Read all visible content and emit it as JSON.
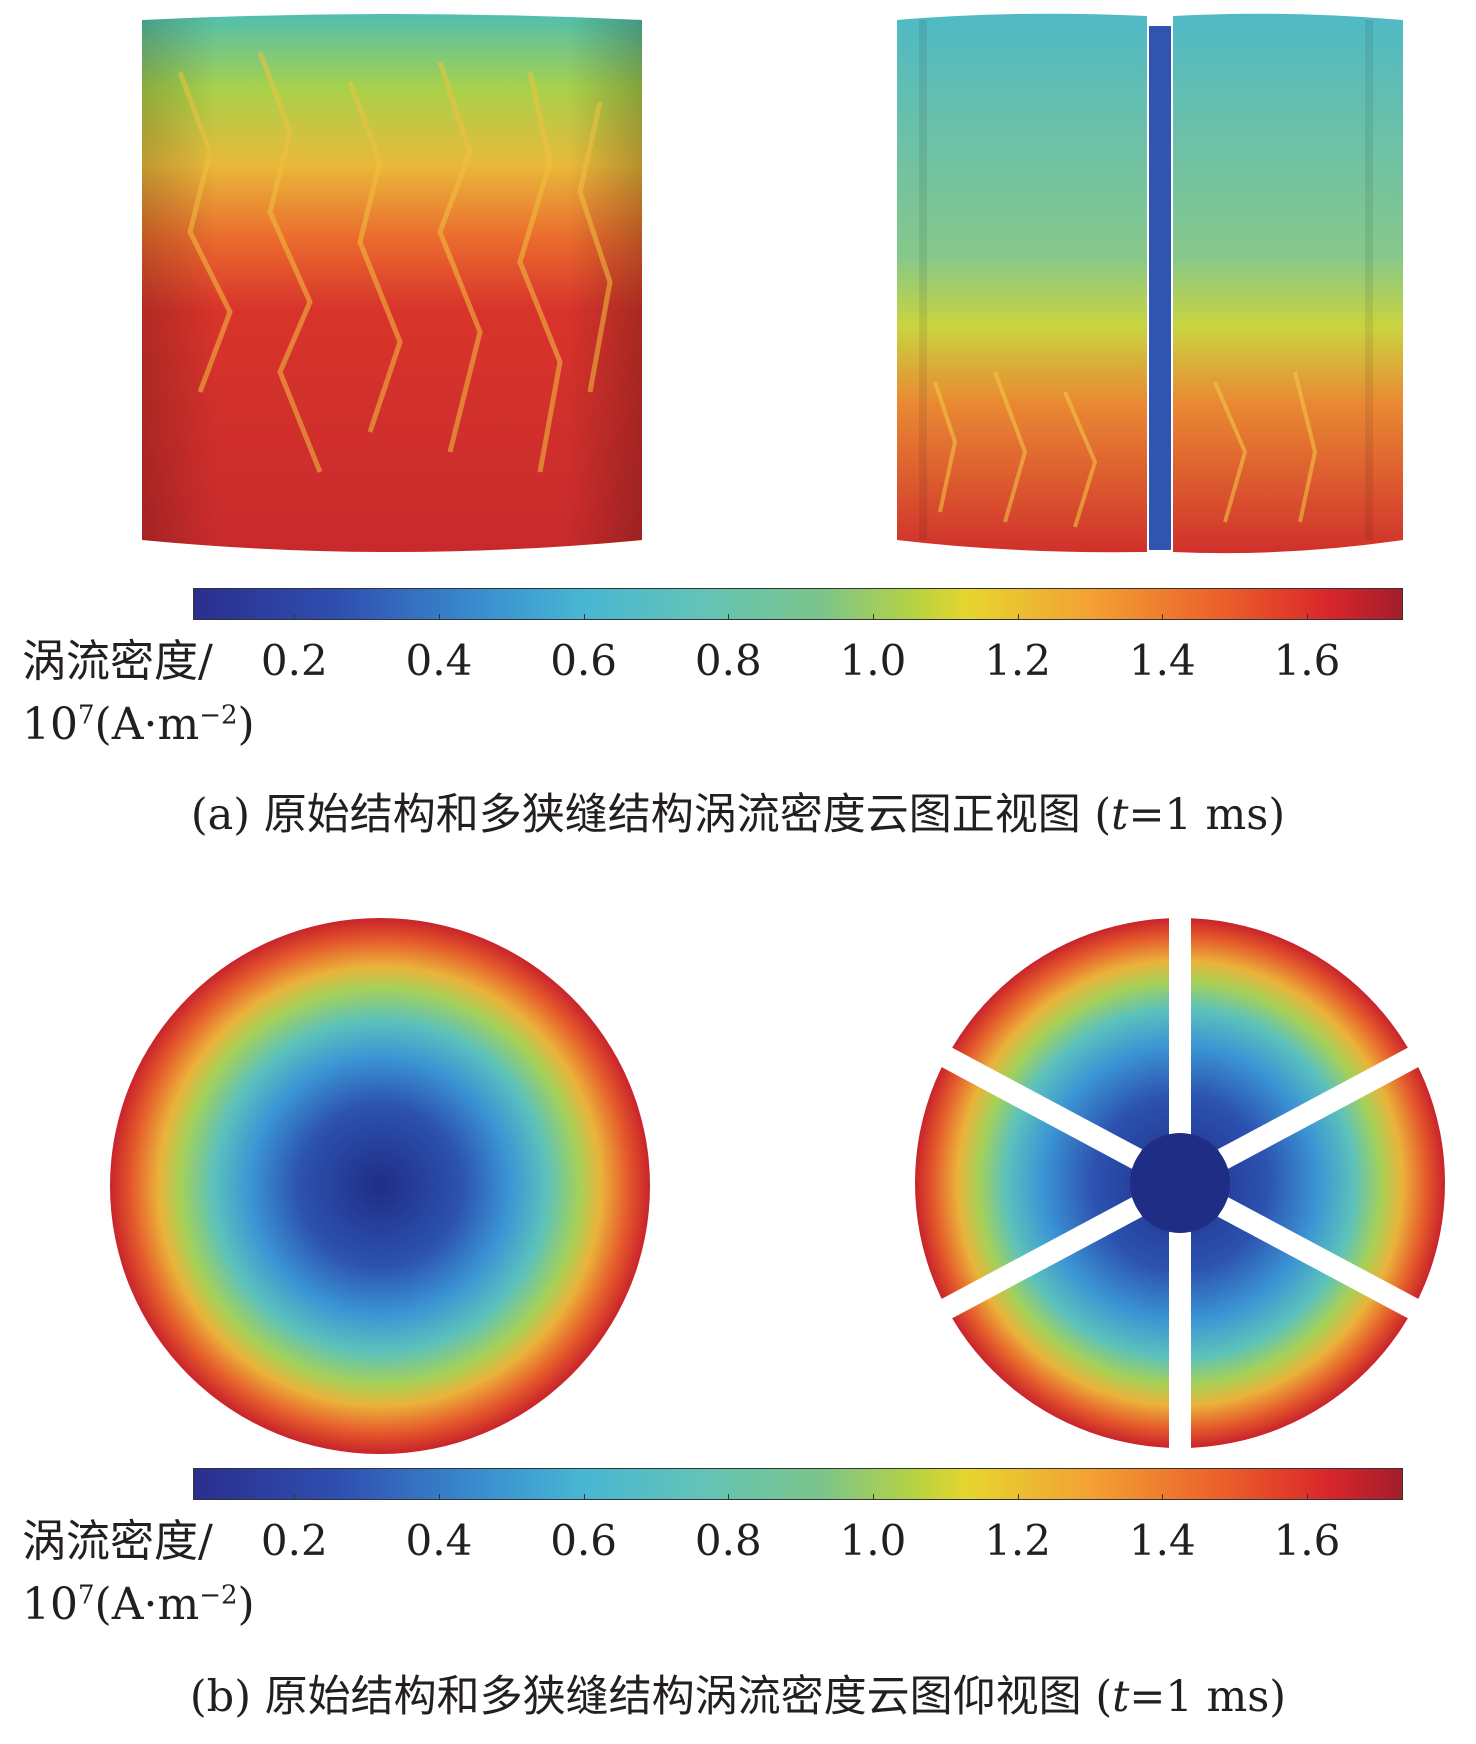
{
  "panel_a": {
    "colorbar": {
      "title_line1": "涡流密度/",
      "unit_base": "10",
      "unit_exp": "7",
      "unit_rest": "(A·m",
      "unit_exp2": "−2",
      "unit_close": ")",
      "ticks": [
        "0.2",
        "0.4",
        "0.6",
        "0.8",
        "1.0",
        "1.2",
        "1.4",
        "1.6"
      ],
      "range": [
        0.06,
        1.73
      ]
    },
    "caption_prefix": "(a) 原始结构和多狭缝结构涡流密度云图正视图 (",
    "caption_var": "t",
    "caption_suffix": "=1 ms)"
  },
  "panel_b": {
    "colorbar": {
      "title_line1": "涡流密度/",
      "unit_base": "10",
      "unit_exp": "7",
      "unit_rest": "(A·m",
      "unit_exp2": "−2",
      "unit_close": ")",
      "ticks": [
        "0.2",
        "0.4",
        "0.6",
        "0.8",
        "1.0",
        "1.2",
        "1.4",
        "1.6"
      ],
      "range": [
        0.06,
        1.73
      ]
    },
    "caption_prefix": "(b) 原始结构和多狭缝结构涡流密度云图仰视图 (",
    "caption_var": "t",
    "caption_suffix": "=1 ms)"
  },
  "colors": {
    "low": "#2b2e8e",
    "mid": "#7cc58a",
    "high": "#a31d2b",
    "slit": "#2f55b0"
  }
}
